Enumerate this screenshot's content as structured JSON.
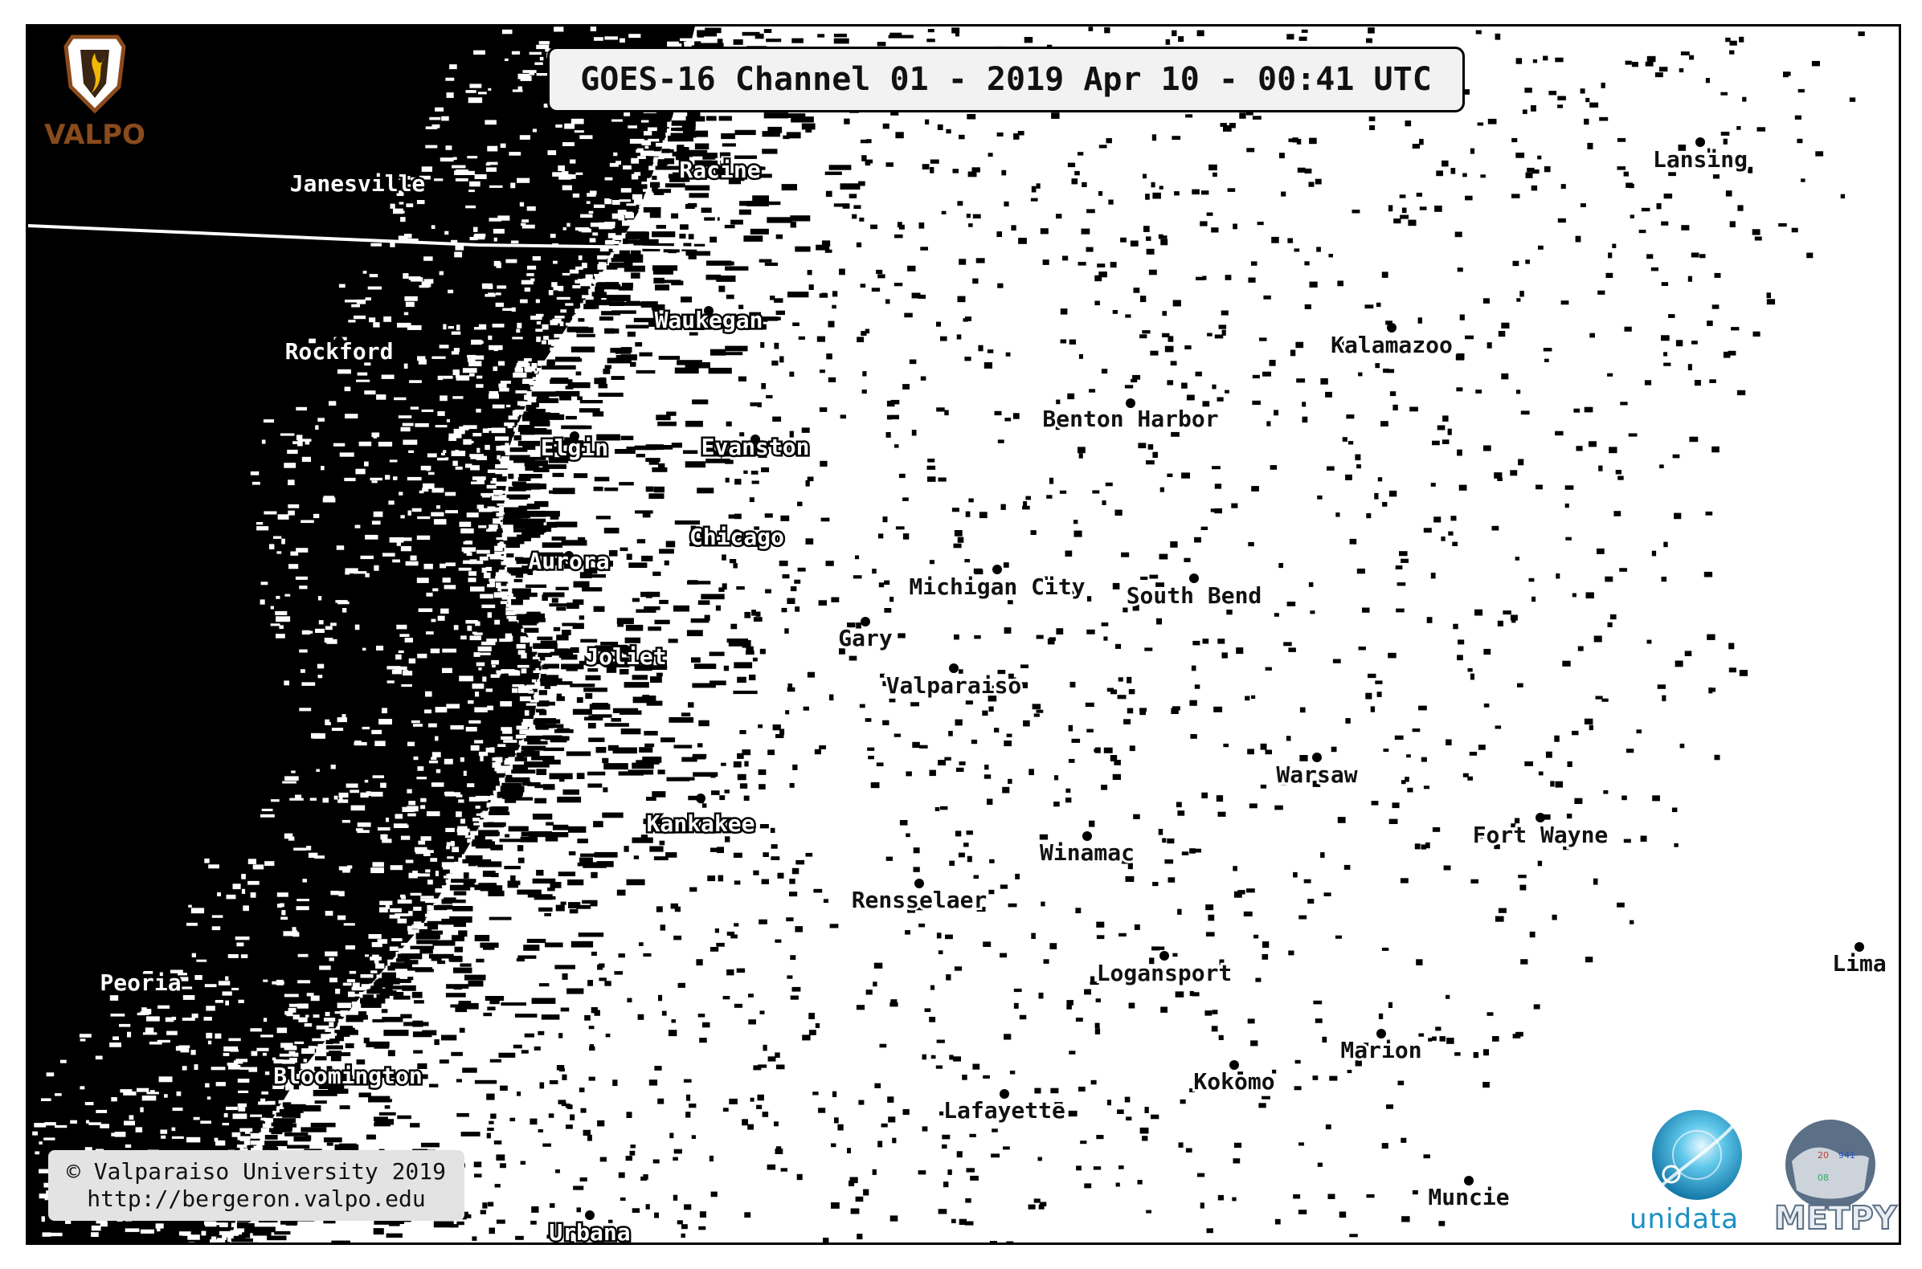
{
  "title": "GOES-16 Channel 01 - 2019 Apr 10 - 00:41 UTC",
  "copyright": {
    "line1": "© Valparaiso University 2019",
    "line2": "http://bergeron.valpo.edu"
  },
  "logos": {
    "valpo": {
      "text": "VALPO",
      "icon": "valpo-shield-icon",
      "color": "#8a4b1c"
    },
    "unidata": {
      "text": "unidata",
      "icon": "unidata-globe-icon",
      "color": "#1a8fc4"
    },
    "metpy": {
      "text": "METPY",
      "icon": "metpy-globe-icon",
      "color": "#5b6f86"
    }
  },
  "colors": {
    "cloud_dark": "#000000",
    "clear_bright": "#ffffff"
  },
  "cities_dark": [
    {
      "name": "Janesville"
    },
    {
      "name": "Racine"
    },
    {
      "name": "Waukegan"
    },
    {
      "name": "Rockford"
    },
    {
      "name": "Elgin"
    },
    {
      "name": "Evanston"
    },
    {
      "name": "Chicago"
    },
    {
      "name": "Aurora"
    },
    {
      "name": "Joliet"
    },
    {
      "name": "Kankakee"
    },
    {
      "name": "Peoria"
    },
    {
      "name": "Bloomington"
    },
    {
      "name": "Urbana"
    }
  ],
  "cities_light": [
    {
      "name": "Lansing"
    },
    {
      "name": "Kalamazoo"
    },
    {
      "name": "Benton Harbor"
    },
    {
      "name": "Michigan City"
    },
    {
      "name": "South Bend"
    },
    {
      "name": "Gary"
    },
    {
      "name": "Valparaiso"
    },
    {
      "name": "Warsaw"
    },
    {
      "name": "Fort Wayne"
    },
    {
      "name": "Winamac"
    },
    {
      "name": "Rensselaer"
    },
    {
      "name": "Logansport"
    },
    {
      "name": "Lima"
    },
    {
      "name": "Marion"
    },
    {
      "name": "Kokomo"
    },
    {
      "name": "Lafayette"
    },
    {
      "name": "Muncie"
    }
  ]
}
